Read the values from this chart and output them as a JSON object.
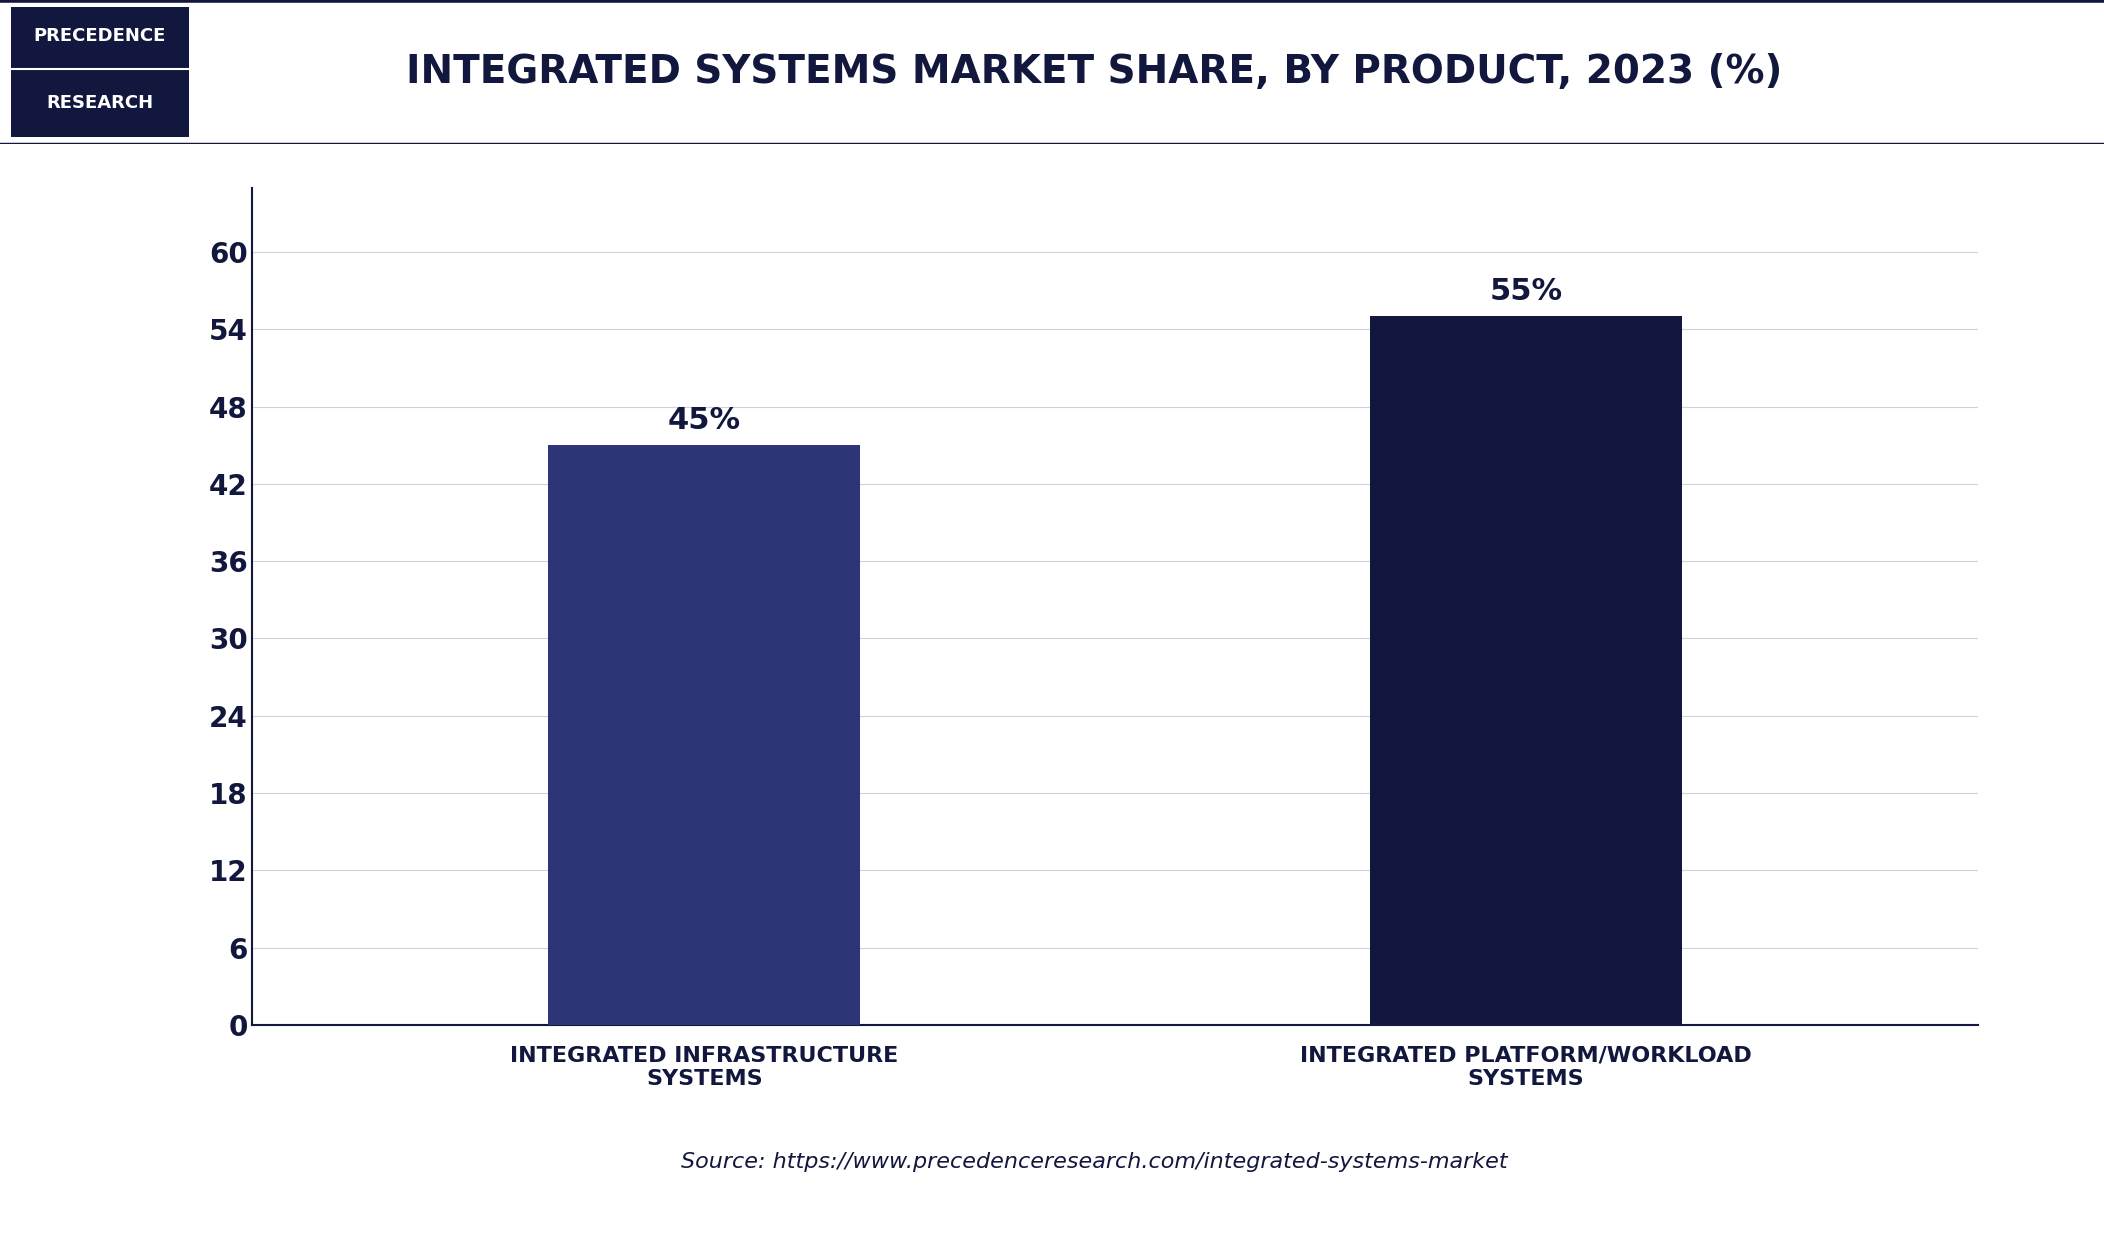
{
  "title": "INTEGRATED SYSTEMS MARKET SHARE, BY PRODUCT, 2023 (%)",
  "categories": [
    "INTEGRATED INFRASTRUCTURE\nSYSTEMS",
    "INTEGRATED PLATFORM/WORKLOAD\nSYSTEMS"
  ],
  "values": [
    45,
    55
  ],
  "bar_colors": [
    "#2d3478",
    "#12173d"
  ],
  "label_texts": [
    "45%",
    "55%"
  ],
  "yticks": [
    0,
    6,
    12,
    18,
    24,
    30,
    36,
    42,
    48,
    54,
    60
  ],
  "ylim": [
    0,
    65
  ],
  "source_text": "Source: https://www.precedenceresearch.com/integrated-systems-market",
  "background_color": "#ffffff",
  "header_bg_color": "#12173d",
  "header_line_color": "#12173d",
  "title_color": "#12173d",
  "axis_color": "#12173d",
  "tick_color": "#12173d",
  "bar_label_color": "#12173d",
  "source_color": "#12173d",
  "grid_color": "#d0d0e0",
  "logo_text_top": "PRECEDENCE",
  "logo_text_bottom": "RESEARCH",
  "logo_bg_color": "#12173d",
  "logo_text_color": "#ffffff",
  "title_fontsize": 28,
  "tick_fontsize": 20,
  "xlabel_fontsize": 16,
  "bar_label_fontsize": 22,
  "source_fontsize": 16
}
